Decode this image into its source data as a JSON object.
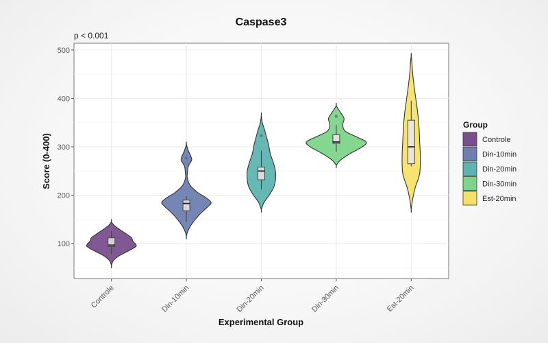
{
  "chart_data": {
    "type": "violin",
    "title": "Caspase3",
    "subtitle": "p < 0.001",
    "xlabel": "Experimental Group",
    "ylabel": "Score (0-400)",
    "ylim": [
      28,
      514
    ],
    "yticks": [
      100,
      200,
      300,
      400,
      500
    ],
    "grid": true,
    "legend": {
      "title": "Group",
      "position": "right",
      "entries": [
        "Controle",
        "Din-10min",
        "Din-20min",
        "Din-30min",
        "Est-20min"
      ]
    },
    "categories": [
      "Controle",
      "Din-10min",
      "Din-20min",
      "Din-30min",
      "Est-20min"
    ],
    "series": [
      {
        "name": "Controle",
        "color": "#7b4f8e",
        "min": 55,
        "max": 145,
        "box": {
          "whisker_low": 78,
          "q1": 94,
          "median": 97,
          "q3": 112,
          "whisker_high": 126
        },
        "outliers": [],
        "density": [
          [
            55,
            0
          ],
          [
            65,
            3
          ],
          [
            75,
            12
          ],
          [
            85,
            26
          ],
          [
            95,
            38
          ],
          [
            105,
            33
          ],
          [
            112,
            31
          ],
          [
            118,
            25
          ],
          [
            128,
            14
          ],
          [
            138,
            4
          ],
          [
            145,
            0
          ]
        ]
      },
      {
        "name": "Din-10min",
        "color": "#6f7fb0",
        "min": 115,
        "max": 305,
        "box": {
          "whisker_low": 145,
          "q1": 168,
          "median": 183,
          "q3": 190,
          "whisker_high": 198
        },
        "outliers": [
          277
        ],
        "density": [
          [
            115,
            0
          ],
          [
            125,
            2
          ],
          [
            140,
            8
          ],
          [
            160,
            20
          ],
          [
            175,
            32
          ],
          [
            185,
            38
          ],
          [
            195,
            30
          ],
          [
            205,
            18
          ],
          [
            220,
            6
          ],
          [
            235,
            1.5
          ],
          [
            245,
            1.5
          ],
          [
            260,
            3
          ],
          [
            272,
            8
          ],
          [
            280,
            7
          ],
          [
            292,
            3
          ],
          [
            305,
            0
          ]
        ]
      },
      {
        "name": "Din-20min",
        "color": "#5fb3b0",
        "min": 170,
        "max": 365,
        "box": {
          "whisker_low": 212,
          "q1": 232,
          "median": 250,
          "q3": 258,
          "whisker_high": 292
        },
        "outliers": [
          323
        ],
        "density": [
          [
            170,
            0
          ],
          [
            185,
            4
          ],
          [
            200,
            12
          ],
          [
            220,
            20
          ],
          [
            245,
            22
          ],
          [
            265,
            19
          ],
          [
            285,
            14
          ],
          [
            305,
            11
          ],
          [
            320,
            8
          ],
          [
            335,
            5
          ],
          [
            350,
            1.5
          ],
          [
            365,
            0
          ]
        ]
      },
      {
        "name": "Din-30min",
        "color": "#7ed48a",
        "min": 262,
        "max": 385,
        "box": {
          "whisker_low": 290,
          "q1": 307,
          "median": 310,
          "q3": 325,
          "whisker_high": 345
        },
        "outliers": [
          363
        ],
        "density": [
          [
            262,
            0
          ],
          [
            272,
            6
          ],
          [
            285,
            20
          ],
          [
            300,
            40
          ],
          [
            310,
            46
          ],
          [
            320,
            32
          ],
          [
            332,
            14
          ],
          [
            345,
            10
          ],
          [
            358,
            12
          ],
          [
            368,
            8
          ],
          [
            378,
            3
          ],
          [
            385,
            0
          ]
        ]
      },
      {
        "name": "Est-20min",
        "color": "#f5e16a",
        "min": 170,
        "max": 488,
        "box": {
          "whisker_low": 260,
          "q1": 265,
          "median": 300,
          "q3": 355,
          "whisker_high": 395
        },
        "outliers": [],
        "density": [
          [
            170,
            0
          ],
          [
            190,
            2
          ],
          [
            215,
            6
          ],
          [
            245,
            13
          ],
          [
            280,
            14
          ],
          [
            310,
            13
          ],
          [
            340,
            12
          ],
          [
            370,
            10
          ],
          [
            400,
            7
          ],
          [
            430,
            4
          ],
          [
            455,
            2
          ],
          [
            475,
            1
          ],
          [
            488,
            0
          ]
        ]
      }
    ]
  }
}
